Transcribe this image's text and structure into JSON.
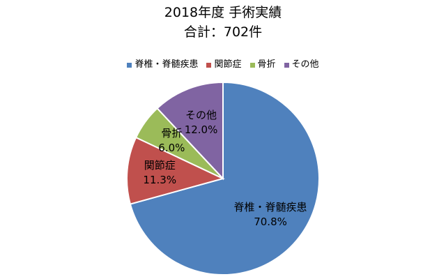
{
  "chart_data": {
    "type": "pie",
    "title": "2018年度 手術実績",
    "subtitle": "合計：702件",
    "categories": [
      "脊椎・脊髄疾患",
      "関節症",
      "骨折",
      "その他"
    ],
    "values": [
      70.8,
      11.3,
      6.0,
      12.0
    ],
    "value_labels": [
      "70.8%",
      "11.3%",
      "6.0%",
      "12.0%"
    ],
    "colors": [
      "#4F81BD",
      "#C0504D",
      "#9BBB59",
      "#8064A2"
    ],
    "start_angle_deg": 0,
    "direction": "clockwise",
    "legend_position": "top",
    "data_labels": "inside"
  }
}
